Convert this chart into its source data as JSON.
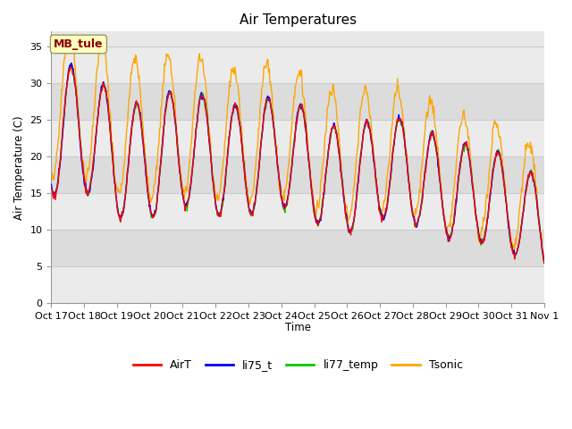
{
  "title": "Air Temperatures",
  "ylabel": "Air Temperature (C)",
  "xlabel": "Time",
  "annotation": "MB_tule",
  "annotation_color": "#8B0000",
  "annotation_bg": "#FFFFC0",
  "ylim": [
    0,
    37
  ],
  "yticks": [
    0,
    5,
    10,
    15,
    20,
    25,
    30,
    35
  ],
  "xtick_labels": [
    "Oct 17",
    "Oct 18",
    "Oct 19",
    "Oct 20",
    "Oct 21",
    "Oct 22",
    "Oct 23",
    "Oct 24",
    "Oct 25",
    "Oct 26",
    "Oct 27",
    "Oct 28",
    "Oct 29",
    "Oct 30",
    "Oct 31",
    "Nov 1"
  ],
  "legend_entries": [
    "AirT",
    "li75_t",
    "li77_temp",
    "Tsonic"
  ],
  "line_colors": [
    "#FF0000",
    "#0000FF",
    "#00CC00",
    "#FFA500"
  ],
  "grid_color": "#CCCCCC",
  "bg_color": "#E8E8E8",
  "fig_bg": "#FFFFFF",
  "linewidth": 1.0,
  "band_color_light": "#F0F0F0",
  "band_color_dark": "#E0E0E0"
}
